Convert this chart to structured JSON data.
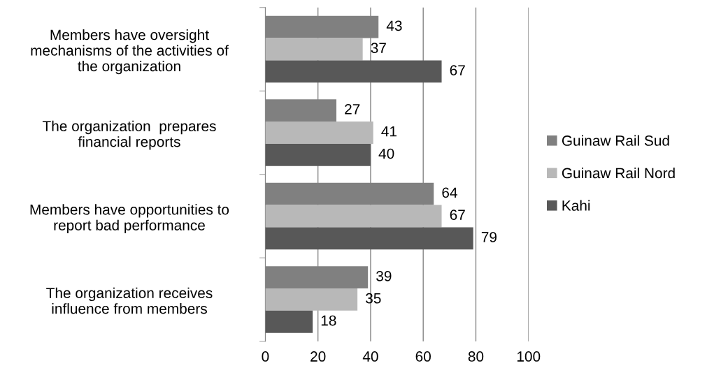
{
  "chart_data": {
    "type": "bar",
    "orientation": "horizontal",
    "categories": [
      "Members have oversight\nmechanisms of the activities of\nthe organization",
      "The organization  prepares\nfinancial reports",
      "Members have opportunities to\nreport bad performance",
      "The organization receives\ninfluence from members"
    ],
    "series": [
      {
        "name": "Guinaw Rail Sud",
        "color": "#808080",
        "values": [
          43,
          27,
          64,
          39
        ]
      },
      {
        "name": "Guinaw Rail Nord",
        "color": "#b8b8b8",
        "values": [
          37,
          41,
          67,
          35
        ]
      },
      {
        "name": "Kahi",
        "color": "#585858",
        "values": [
          67,
          40,
          79,
          18
        ]
      }
    ],
    "xlim": [
      0,
      100
    ],
    "xticks": [
      0,
      20,
      40,
      60,
      80,
      100
    ],
    "grid": "x",
    "legend": "right",
    "data_labels": true
  }
}
